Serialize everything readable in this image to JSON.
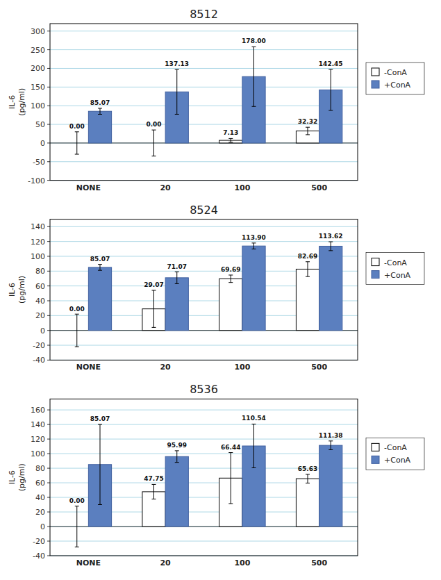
{
  "chart_data": [
    {
      "type": "bar",
      "title": "8512",
      "y_label": "IL-6\n(pg/ml)",
      "categories": [
        "NONE",
        "20",
        "100",
        "500"
      ],
      "series": [
        {
          "name": "-ConA",
          "color": "white",
          "values": [
            0.0,
            0.0,
            7.13,
            32.32
          ],
          "errors": [
            30,
            35,
            5,
            10
          ],
          "value_labels": [
            "0.00",
            "0.00",
            "7.13",
            "32.32"
          ]
        },
        {
          "name": "+ConA",
          "color": "#5B7FBF",
          "values": [
            85.07,
            137.13,
            178.0,
            142.45
          ],
          "errors": [
            8,
            60,
            80,
            55
          ],
          "value_labels": [
            "85.07",
            "137.13",
            "178.00",
            "142.45"
          ]
        }
      ],
      "ylim": [
        -100,
        320
      ],
      "yticks": [
        -100,
        -50,
        0,
        50,
        100,
        150,
        200,
        250,
        300
      ],
      "grid": true,
      "legend": "right",
      "data_labels": true
    },
    {
      "type": "bar",
      "title": "8524",
      "y_label": "IL-6\n(pg/ml)",
      "categories": [
        "NONE",
        "20",
        "100",
        "500"
      ],
      "series": [
        {
          "name": "-ConA",
          "color": "white",
          "values": [
            0.0,
            29.07,
            69.69,
            82.69
          ],
          "errors": [
            22,
            25,
            5,
            10
          ],
          "value_labels": [
            "0.00",
            "29.07",
            "69.69",
            "82.69"
          ]
        },
        {
          "name": "+ConA",
          "color": "#5B7FBF",
          "values": [
            85.07,
            71.07,
            113.9,
            113.62
          ],
          "errors": [
            4,
            8,
            4,
            6
          ],
          "value_labels": [
            "85.07",
            "71.07",
            "113.90",
            "113.62"
          ]
        }
      ],
      "ylim": [
        -40,
        150
      ],
      "yticks": [
        -40,
        -20,
        0,
        20,
        40,
        60,
        80,
        100,
        120,
        140
      ],
      "grid": true,
      "legend": "right",
      "data_labels": true
    },
    {
      "type": "bar",
      "title": "8536",
      "y_label": "IL-6\n(pg/ml)",
      "categories": [
        "NONE",
        "20",
        "100",
        "500"
      ],
      "series": [
        {
          "name": "-ConA",
          "color": "white",
          "values": [
            0.0,
            47.75,
            66.44,
            65.63
          ],
          "errors": [
            28,
            10,
            35,
            6
          ],
          "value_labels": [
            "0.00",
            "47.75",
            "66.44",
            "65.63"
          ]
        },
        {
          "name": "+ConA",
          "color": "#5B7FBF",
          "values": [
            85.07,
            95.99,
            110.54,
            111.38
          ],
          "errors": [
            55,
            8,
            30,
            6
          ],
          "value_labels": [
            "85.07",
            "95.99",
            "110.54",
            "111.38"
          ]
        }
      ],
      "ylim": [
        -40,
        175
      ],
      "yticks": [
        -40,
        -20,
        0,
        20,
        40,
        60,
        80,
        100,
        120,
        140,
        160
      ],
      "grid": true,
      "legend": "right",
      "data_labels": true
    }
  ]
}
